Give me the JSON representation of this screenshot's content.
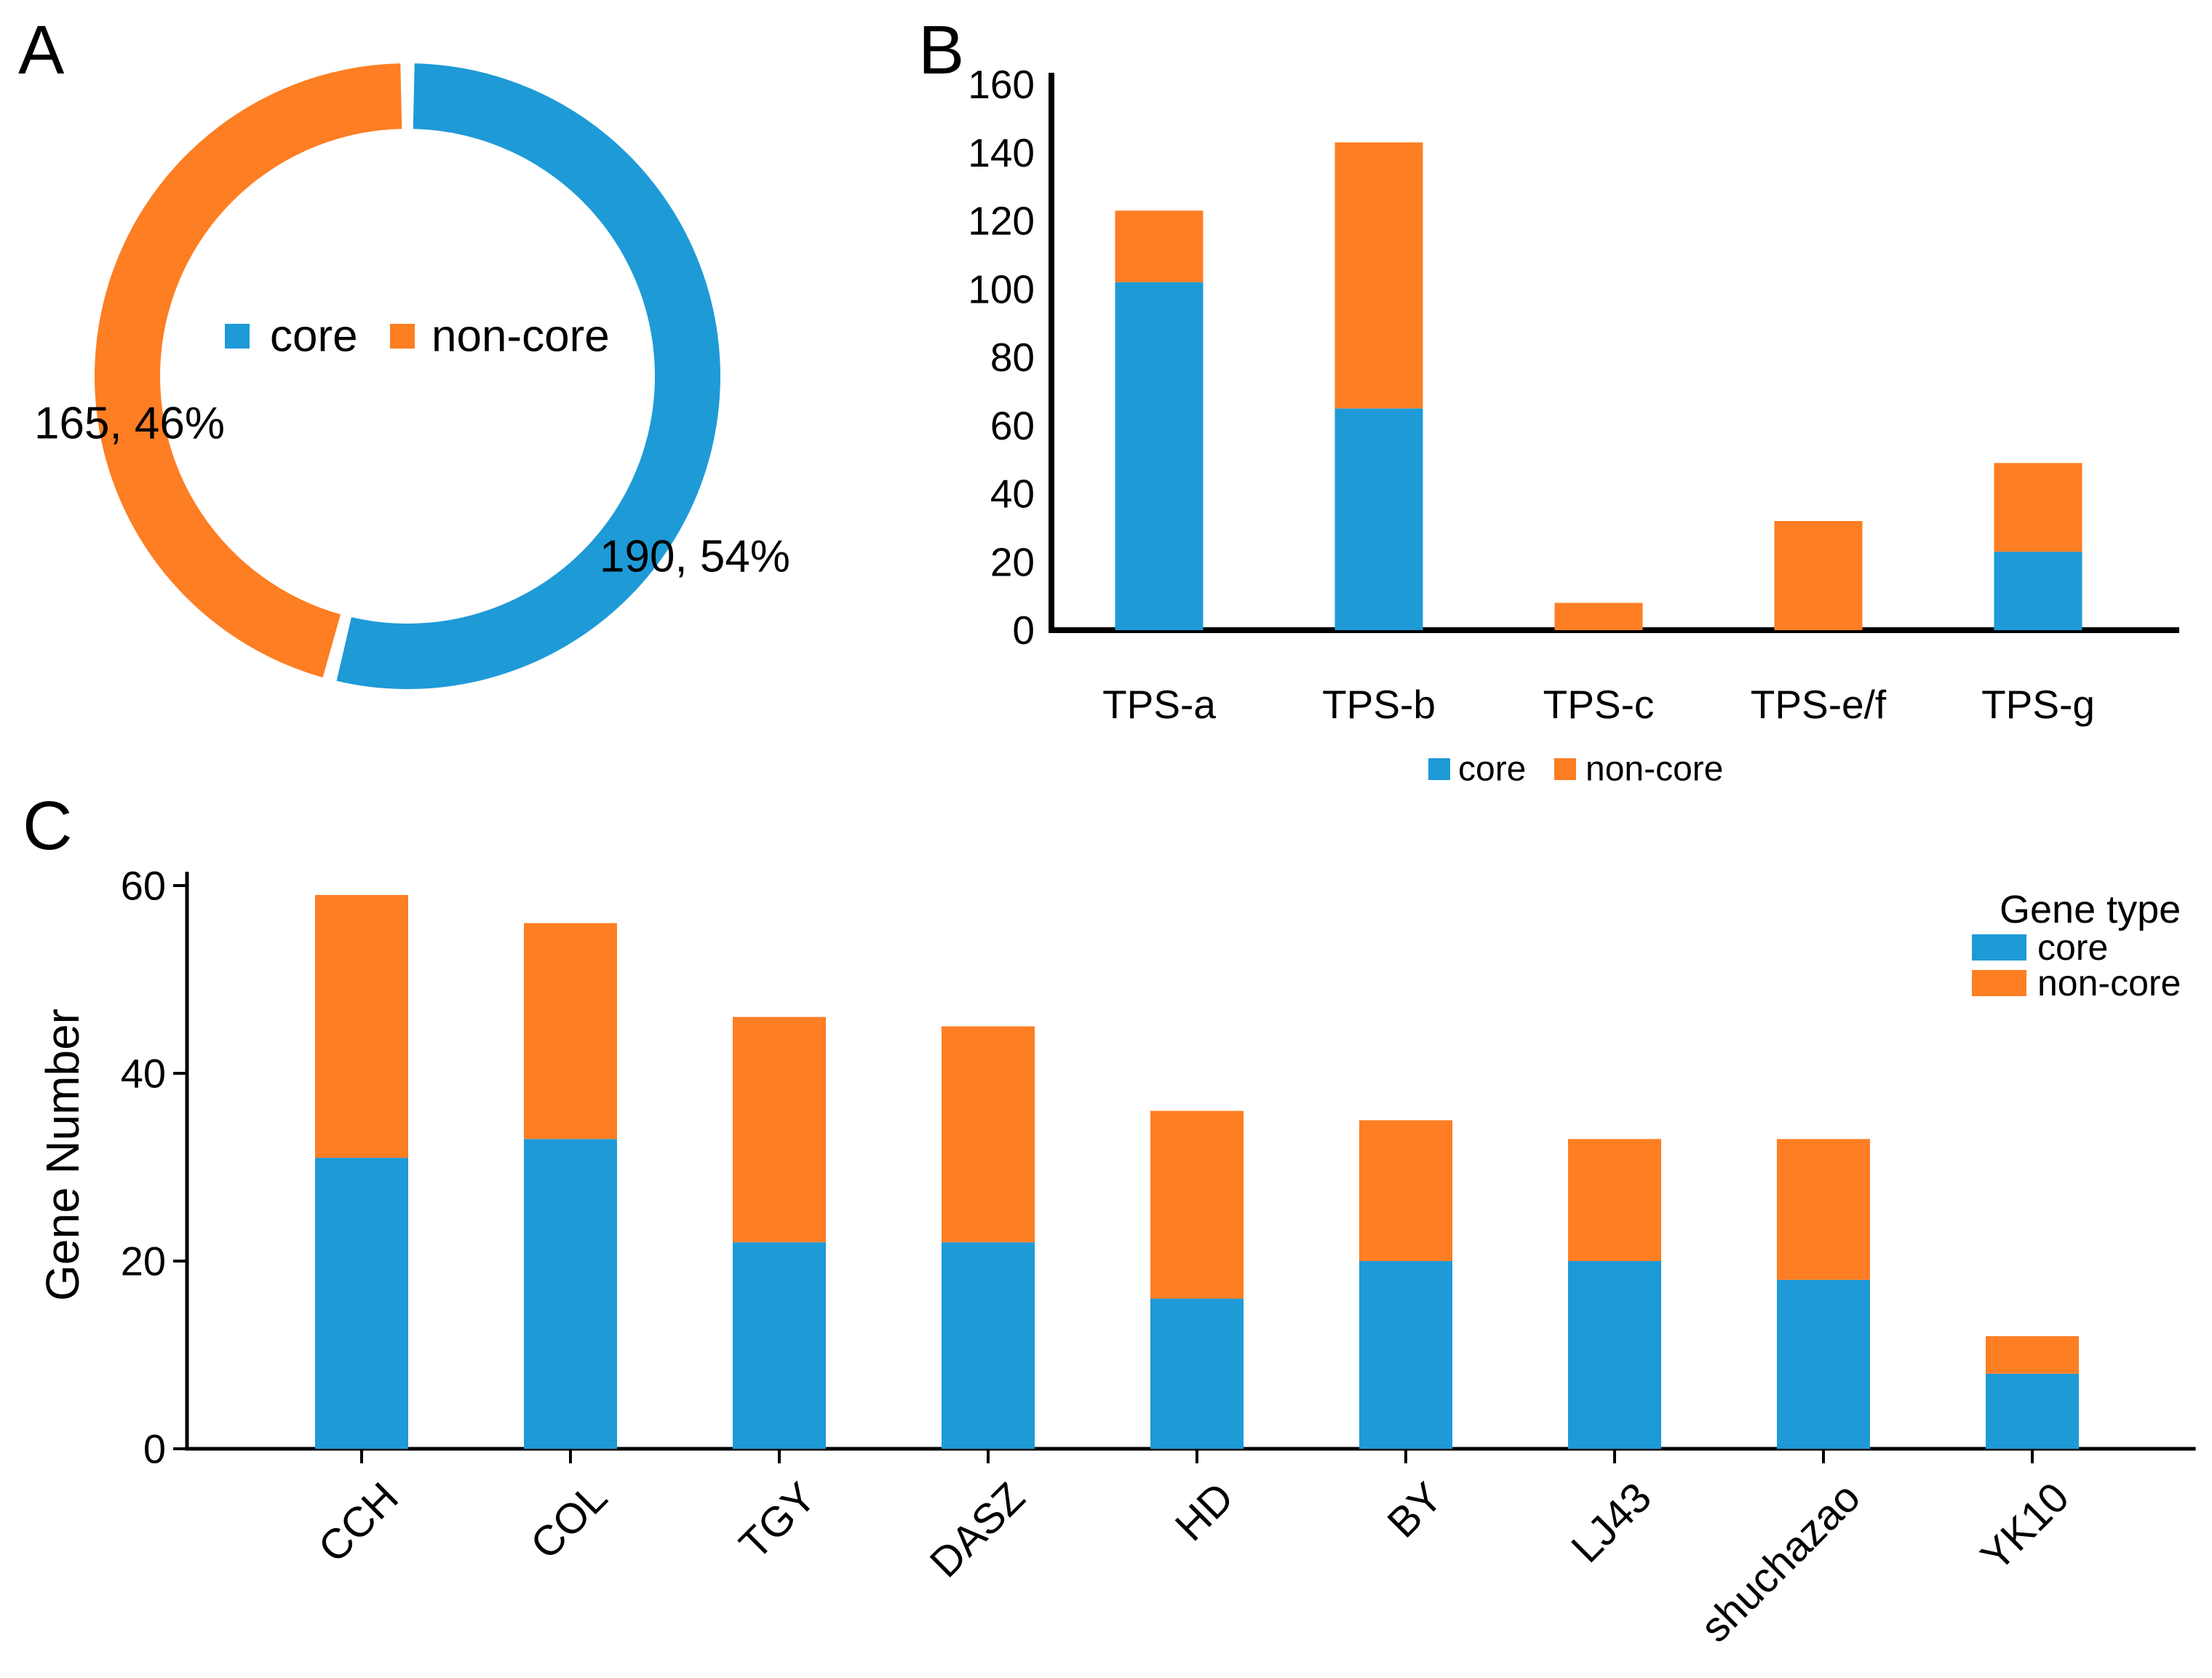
{
  "colors": {
    "core": "#1e9ad7",
    "non_core": "#fd7e23",
    "text": "#000000",
    "axis": "#000000",
    "background": "#ffffff"
  },
  "panels": [
    {
      "id": "A",
      "letter": "A",
      "kind": "donut chart"
    },
    {
      "id": "B",
      "letter": "B",
      "kind": "stacked bar chart"
    },
    {
      "id": "C",
      "letter": "C",
      "kind": "stacked bar chart"
    }
  ],
  "legend_labels": {
    "core": "core",
    "non_core": "non-core"
  },
  "chart_data": [
    {
      "panel": "A",
      "type": "pie",
      "subtype": "donut",
      "legend": [
        "core",
        "non-core"
      ],
      "legend_position": "center",
      "start_angle_deg": -90,
      "direction": "clockwise",
      "slices": [
        {
          "label": "core",
          "value": 190,
          "percent": 54,
          "data_label": "190, 54%",
          "color": "#1e9ad7"
        },
        {
          "label": "non-core",
          "value": 165,
          "percent": 46,
          "data_label": "165, 46%",
          "color": "#fd7e23"
        }
      ]
    },
    {
      "panel": "B",
      "type": "bar",
      "subtype": "stacked",
      "categories": [
        "TPS-a",
        "TPS-b",
        "TPS-c",
        "TPS-e/f",
        "TPS-g"
      ],
      "series": [
        {
          "name": "core",
          "color": "#1e9ad7",
          "values": [
            102,
            65,
            0,
            0,
            23
          ]
        },
        {
          "name": "non-core",
          "color": "#fd7e23",
          "values": [
            21,
            78,
            8,
            32,
            26
          ]
        }
      ],
      "totals": [
        123,
        143,
        8,
        32,
        49
      ],
      "xlabel": "",
      "ylabel": "",
      "ylim": [
        0,
        160
      ],
      "yticks": [
        0,
        20,
        40,
        60,
        80,
        100,
        120,
        140,
        160
      ],
      "grid": false,
      "legend": [
        "core",
        "non-core"
      ],
      "legend_position": "bottom"
    },
    {
      "panel": "C",
      "type": "bar",
      "subtype": "stacked",
      "categories": [
        "CCH",
        "COL",
        "TGY",
        "DASZ",
        "HD",
        "BY",
        "LJ43",
        "shuchazao",
        "YK10"
      ],
      "series": [
        {
          "name": "core",
          "color": "#1e9ad7",
          "values": [
            31,
            33,
            22,
            22,
            16,
            20,
            20,
            18,
            8
          ]
        },
        {
          "name": "non-core",
          "color": "#fd7e23",
          "values": [
            28,
            23,
            24,
            23,
            20,
            15,
            13,
            15,
            4
          ]
        }
      ],
      "totals": [
        59,
        56,
        46,
        45,
        36,
        35,
        33,
        33,
        12
      ],
      "xlabel": "",
      "ylabel": "Gene Number",
      "ylim": [
        0,
        60
      ],
      "yticks": [
        0,
        20,
        40,
        60
      ],
      "grid": false,
      "legend_title": "Gene type",
      "legend": [
        "core",
        "non-core"
      ],
      "legend_position": "right",
      "xtick_rotation_deg": 45
    }
  ]
}
